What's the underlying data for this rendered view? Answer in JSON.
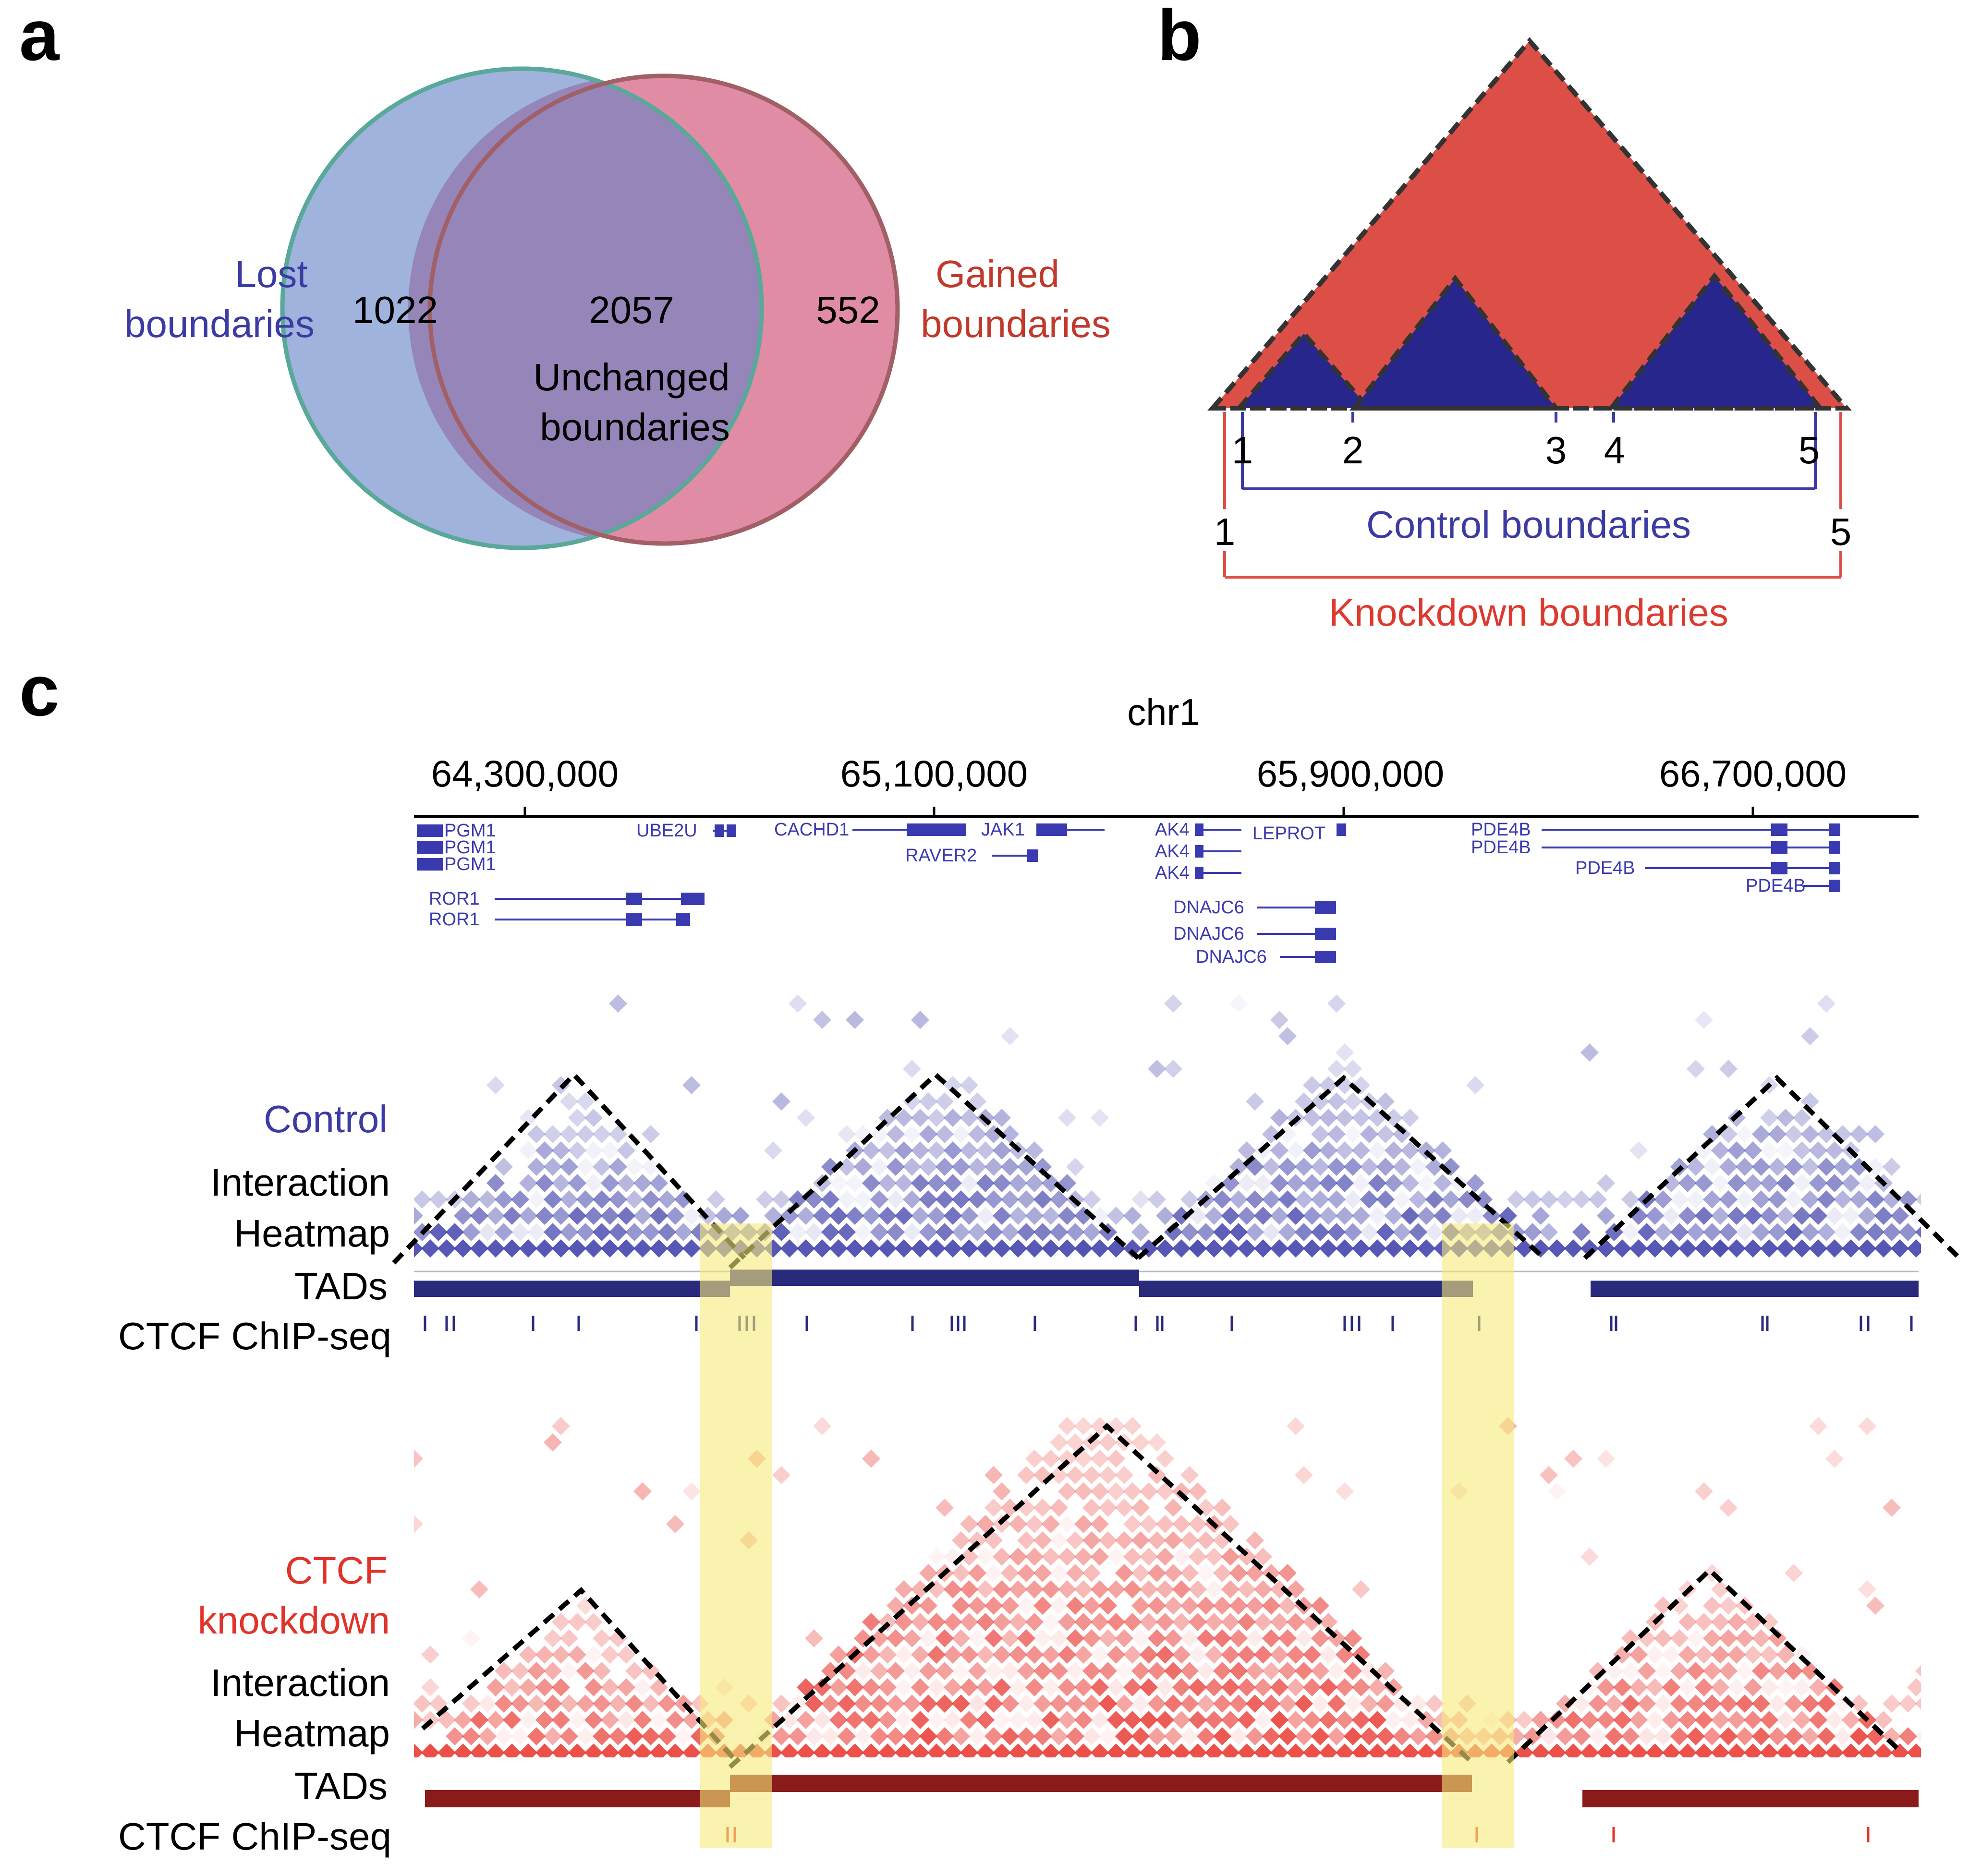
{
  "panels": {
    "a": "a",
    "b": "b",
    "c": "c"
  },
  "venn": {
    "left_label_line1": "Lost",
    "left_label_line2": "boundaries",
    "right_label_line1": "Gained",
    "right_label_line2": "boundaries",
    "left_count": "1022",
    "overlap_count": "2057",
    "right_count": "552",
    "overlap_label_line1": "Unchanged",
    "overlap_label_line2": "boundaries",
    "colors": {
      "left": "#9fb3dd",
      "right": "#de7f9b",
      "overlap": "#9585b8",
      "left_outline": "#5aa89a",
      "right_outline": "#a15f66"
    }
  },
  "schematic": {
    "control_ticks": [
      "1",
      "2",
      "3",
      "4",
      "5"
    ],
    "knockdown_left": "1",
    "knockdown_right": "5",
    "control_label": "Control boundaries",
    "knockdown_label": "Knockdown boundaries",
    "colors": {
      "control": "#26268c",
      "knockdown": "#dc4f47"
    }
  },
  "genome_view": {
    "chromosome": "chr1",
    "axis_ticks": [
      "64,300,000",
      "65,100,000",
      "65,900,000",
      "66,700,000"
    ],
    "genes": [
      {
        "name": "PGM1"
      },
      {
        "name": "PGM1"
      },
      {
        "name": "PGM1"
      },
      {
        "name": "ROR1"
      },
      {
        "name": "ROR1"
      },
      {
        "name": "UBE2U"
      },
      {
        "name": "CACHD1"
      },
      {
        "name": "RAVER2"
      },
      {
        "name": "JAK1"
      },
      {
        "name": "AK4"
      },
      {
        "name": "AK4"
      },
      {
        "name": "AK4"
      },
      {
        "name": "LEPROT"
      },
      {
        "name": "DNAJC6"
      },
      {
        "name": "DNAJC6"
      },
      {
        "name": "DNAJC6"
      },
      {
        "name": "PDE4B"
      },
      {
        "name": "PDE4B"
      },
      {
        "name": "PDE4B"
      },
      {
        "name": "PDE4B"
      }
    ],
    "control": {
      "title": "Control",
      "heatmap_line1": "Interaction",
      "heatmap_line2": "Heatmap",
      "tads_label": "TADs",
      "chip_label": "CTCF ChIP-seq",
      "color": "#3a3aa8",
      "tad_color": "#2a2a7c"
    },
    "knockdown": {
      "title_line1": "CTCF",
      "title_line2": "knockdown",
      "heatmap_line1": "Interaction",
      "heatmap_line2": "Heatmap",
      "tads_label": "TADs",
      "chip_label": "CTCF ChIP-seq",
      "color": "#e8312a",
      "tad_color": "#8b1a1a"
    },
    "highlight_color": "#f7ea7a"
  }
}
